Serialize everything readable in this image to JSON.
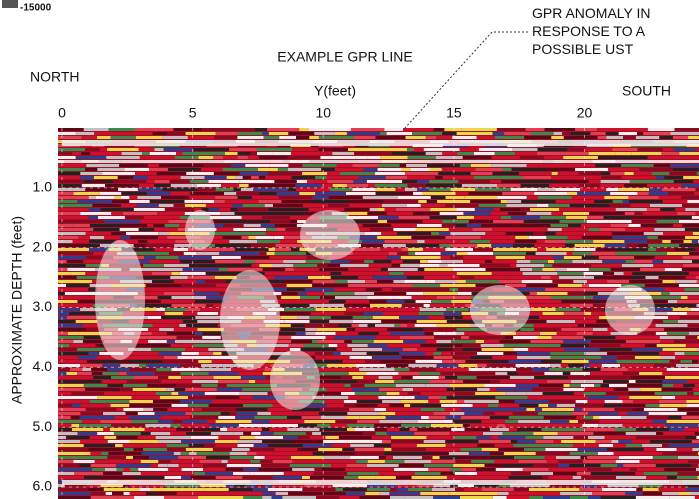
{
  "chart_data": {
    "type": "radargram",
    "title": "EXAMPLE GPR LINE",
    "x_label": "Y(feet)",
    "y_label": "APPROXIMATE DEPTH (feet)",
    "left_label": "NORTH",
    "right_label": "SOUTH",
    "colorbar_label": "-15000",
    "annotation": [
      "GPR ANOMALY IN",
      "RESPONSE TO A",
      "POSSIBLE UST"
    ],
    "xlim": [
      0,
      24
    ],
    "xticks": [
      0,
      5,
      10,
      15,
      20
    ],
    "ylim": [
      0,
      6.2
    ],
    "yticks": [
      {
        "value": 1,
        "label": "1.0"
      },
      {
        "value": 2,
        "label": "2.0"
      },
      {
        "value": 3,
        "label": "3.0"
      },
      {
        "value": 4,
        "label": "4.0"
      },
      {
        "value": 5,
        "label": "5.0"
      },
      {
        "value": 6,
        "label": "6.0"
      }
    ],
    "grid": true
  }
}
